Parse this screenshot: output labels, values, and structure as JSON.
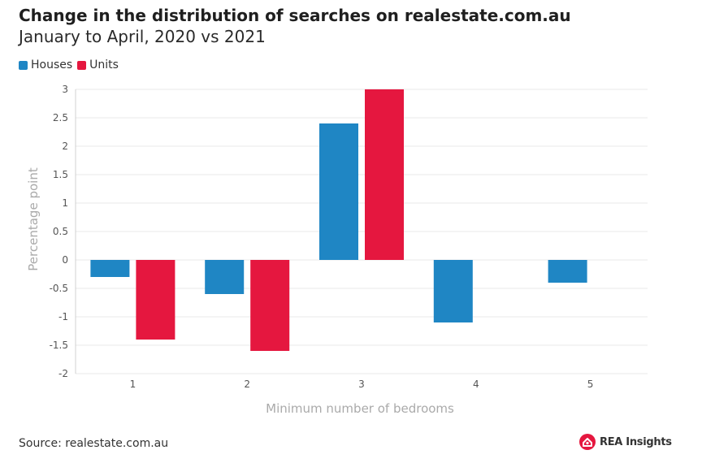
{
  "title": "Change in the distribution of searches on realestate.com.au",
  "subtitle": "January to April, 2020 vs 2021",
  "source": "Source: realestate.com.au",
  "logo": {
    "name": "rea-logo-icon",
    "text": "REA Insights"
  },
  "colors": {
    "houses": "#1f86c4",
    "units": "#e5173f",
    "grid": "#e8e8e8",
    "axis_text": "#555555",
    "axis_title": "#aaaaaa"
  },
  "chart_data": {
    "type": "bar",
    "title": "Change in the distribution of searches on realestate.com.au",
    "subtitle": "January to April, 2020 vs 2021",
    "xlabel": "Minimum number of bedrooms",
    "ylabel": "Percentage point",
    "categories": [
      "1",
      "2",
      "3",
      "4",
      "5"
    ],
    "series": [
      {
        "name": "Houses",
        "color": "#1f86c4",
        "values": [
          -0.3,
          -0.6,
          2.4,
          -1.1,
          -0.4
        ]
      },
      {
        "name": "Units",
        "color": "#e5173f",
        "values": [
          -1.4,
          -1.6,
          3.0,
          null,
          null
        ]
      }
    ],
    "ylim": [
      -2,
      3
    ],
    "yticks": [
      "3",
      "2.5",
      "2",
      "1.5",
      "1",
      "0.5",
      "0",
      "-0.5",
      "-1",
      "-1.5",
      "-2"
    ],
    "grid": true,
    "legend": "top-left"
  }
}
